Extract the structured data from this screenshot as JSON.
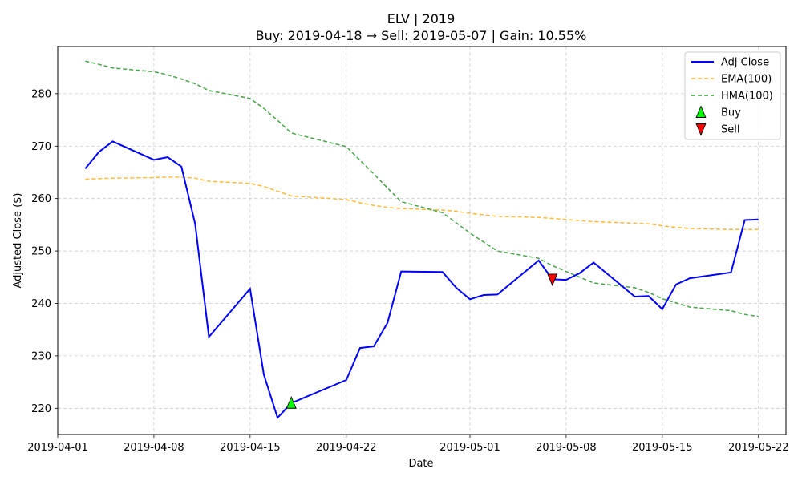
{
  "chart_data": {
    "type": "line",
    "title": "ELV | 2019",
    "subtitle": "Buy: 2019-04-18  →  Sell: 2019-05-07  |  Gain: 10.55%",
    "xlabel": "Date",
    "ylabel": "Adjusted Close ($)",
    "grid": true,
    "legend_position": "top-right",
    "xlim": [
      "2019-04-01",
      "2019-05-24"
    ],
    "ylim": [
      215,
      289
    ],
    "x_ticks": [
      "2019-04-01",
      "2019-04-08",
      "2019-04-15",
      "2019-04-22",
      "2019-05-01",
      "2019-05-08",
      "2019-05-15",
      "2019-05-22"
    ],
    "y_ticks": [
      220,
      230,
      240,
      250,
      260,
      270,
      280
    ],
    "x": [
      "2019-04-03",
      "2019-04-04",
      "2019-04-05",
      "2019-04-08",
      "2019-04-09",
      "2019-04-10",
      "2019-04-11",
      "2019-04-12",
      "2019-04-15",
      "2019-04-16",
      "2019-04-17",
      "2019-04-18",
      "2019-04-22",
      "2019-04-23",
      "2019-04-24",
      "2019-04-25",
      "2019-04-26",
      "2019-04-29",
      "2019-04-30",
      "2019-05-01",
      "2019-05-02",
      "2019-05-03",
      "2019-05-06",
      "2019-05-07",
      "2019-05-08",
      "2019-05-09",
      "2019-05-10",
      "2019-05-13",
      "2019-05-14",
      "2019-05-15",
      "2019-05-16",
      "2019-05-17",
      "2019-05-20",
      "2019-05-21",
      "2019-05-22"
    ],
    "series": [
      {
        "name": "Adj Close",
        "color": "#0000ff",
        "style": "solid",
        "values": [
          265.7,
          268.9,
          270.9,
          267.4,
          267.9,
          266.1,
          255.2,
          233.6,
          242.8,
          226.4,
          218.2,
          221.0,
          225.4,
          231.5,
          231.8,
          236.3,
          246.1,
          246.0,
          243.0,
          240.8,
          241.6,
          241.7,
          248.2,
          244.6,
          244.5,
          245.8,
          247.8,
          241.3,
          241.4,
          238.9,
          243.6,
          244.8,
          245.9,
          255.9,
          256.0
        ]
      },
      {
        "name": "EMA(100)",
        "color": "#ffb732",
        "style": "dashed",
        "values": [
          263.7,
          263.8,
          263.9,
          264.0,
          264.1,
          264.1,
          263.9,
          263.3,
          262.9,
          262.3,
          261.4,
          260.5,
          259.8,
          259.2,
          258.7,
          258.3,
          258.1,
          257.8,
          257.6,
          257.2,
          256.9,
          256.6,
          256.4,
          256.2,
          256.0,
          255.8,
          255.6,
          255.3,
          255.2,
          254.8,
          254.5,
          254.3,
          254.1,
          254.1,
          254.1
        ]
      },
      {
        "name": "HMA(100)",
        "color": "#3ca03c",
        "style": "dashed",
        "values": [
          286.2,
          285.6,
          284.9,
          284.2,
          283.6,
          282.8,
          281.9,
          280.6,
          279.1,
          277.2,
          274.9,
          272.5,
          269.9,
          267.3,
          264.7,
          262.0,
          259.4,
          257.3,
          255.4,
          253.4,
          251.7,
          250.0,
          248.6,
          247.2,
          246.1,
          245.0,
          243.9,
          243.0,
          242.1,
          240.9,
          240.1,
          239.3,
          238.6,
          237.9,
          237.5
        ]
      }
    ],
    "markers": [
      {
        "name": "Buy",
        "x": "2019-04-18",
        "y": 221.0,
        "shape": "triangle-up",
        "color": "#00ff00"
      },
      {
        "name": "Sell",
        "x": "2019-05-07",
        "y": 244.6,
        "shape": "triangle-down",
        "color": "#ff0000"
      }
    ]
  }
}
